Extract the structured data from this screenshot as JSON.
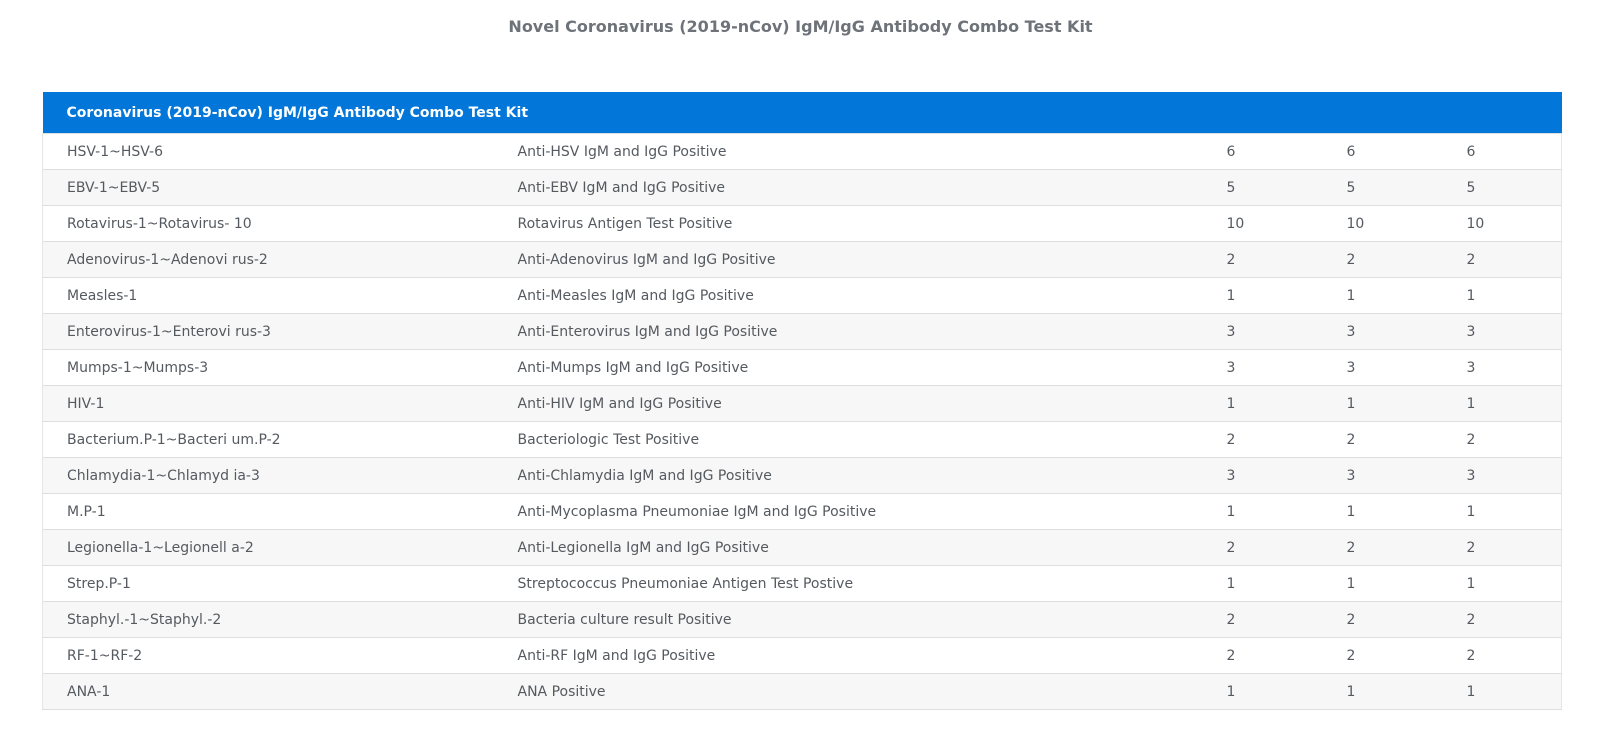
{
  "page": {
    "title": "Novel Coronavirus (2019-nCov) IgM/IgG Antibody Combo Test Kit"
  },
  "table": {
    "header": "Coronavirus (2019-nCov) IgM/IgG Antibody Combo Test Kit",
    "header_color": "#0277d9",
    "rows": [
      [
        "HSV-1~HSV-6",
        "Anti-HSV IgM and IgG Positive",
        "6",
        "6",
        "6"
      ],
      [
        "EBV-1~EBV-5",
        "Anti-EBV IgM and IgG Positive",
        "5",
        "5",
        "5"
      ],
      [
        "Rotavirus-1~Rotavirus- 10",
        "Rotavirus Antigen Test Positive",
        "10",
        "10",
        "10"
      ],
      [
        "Adenovirus-1~Adenovi rus-2",
        "Anti-Adenovirus IgM and IgG Positive",
        "2",
        "2",
        "2"
      ],
      [
        "Measles-1",
        "Anti-Measles IgM and IgG Positive",
        "1",
        "1",
        "1"
      ],
      [
        "Enterovirus-1~Enterovi rus-3",
        "Anti-Enterovirus IgM and IgG Positive",
        "3",
        "3",
        "3"
      ],
      [
        "Mumps-1~Mumps-3",
        "Anti-Mumps IgM and IgG Positive",
        "3",
        "3",
        "3"
      ],
      [
        "HIV-1",
        "Anti-HIV IgM and IgG Positive",
        "1",
        "1",
        "1"
      ],
      [
        "Bacterium.P-1~Bacteri um.P-2",
        "Bacteriologic Test Positive",
        "2",
        "2",
        "2"
      ],
      [
        "Chlamydia-1~Chlamyd ia-3",
        "Anti-Chlamydia IgM and IgG Positive",
        "3",
        "3",
        "3"
      ],
      [
        "M.P-1",
        "Anti-Mycoplasma Pneumoniae IgM and IgG Positive",
        "1",
        "1",
        "1"
      ],
      [
        "Legionella-1~Legionell a-2",
        "Anti-Legionella IgM and IgG Positive",
        "2",
        "2",
        "2"
      ],
      [
        "Strep.P-1",
        "Streptococcus Pneumoniae Antigen Test Postive",
        "1",
        "1",
        "1"
      ],
      [
        "Staphyl.-1~Staphyl.-2",
        "Bacteria culture result Positive",
        "2",
        "2",
        "2"
      ],
      [
        "RF-1~RF-2",
        "Anti-RF IgM and IgG Positive",
        "2",
        "2",
        "2"
      ],
      [
        "ANA-1",
        "ANA Positive",
        "1",
        "1",
        "1"
      ]
    ]
  }
}
